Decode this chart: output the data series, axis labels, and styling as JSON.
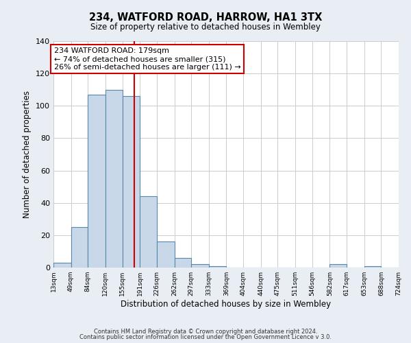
{
  "title": "234, WATFORD ROAD, HARROW, HA1 3TX",
  "subtitle": "Size of property relative to detached houses in Wembley",
  "xlabel": "Distribution of detached houses by size in Wembley",
  "ylabel": "Number of detached properties",
  "bin_edges": [
    13,
    49,
    84,
    120,
    155,
    191,
    226,
    262,
    297,
    333,
    369,
    404,
    440,
    475,
    511,
    546,
    582,
    617,
    653,
    688,
    724
  ],
  "bar_heights": [
    3,
    25,
    107,
    110,
    106,
    44,
    16,
    6,
    2,
    1,
    0,
    0,
    0,
    0,
    0,
    0,
    2,
    0,
    1,
    0
  ],
  "bar_color": "#c8d8e8",
  "bar_edge_color": "#5588aa",
  "vline_x": 179,
  "vline_color": "#cc0000",
  "annotation_text": "234 WATFORD ROAD: 179sqm\n← 74% of detached houses are smaller (315)\n26% of semi-detached houses are larger (111) →",
  "annotation_box_color": "#ffffff",
  "annotation_box_edge": "#cc0000",
  "ylim": [
    0,
    140
  ],
  "yticks": [
    0,
    20,
    40,
    60,
    80,
    100,
    120,
    140
  ],
  "footer_line1": "Contains HM Land Registry data © Crown copyright and database right 2024.",
  "footer_line2": "Contains public sector information licensed under the Open Government Licence v 3.0.",
  "bg_color": "#e8eef4",
  "plot_bg_color": "#ffffff",
  "grid_color": "#cccccc"
}
